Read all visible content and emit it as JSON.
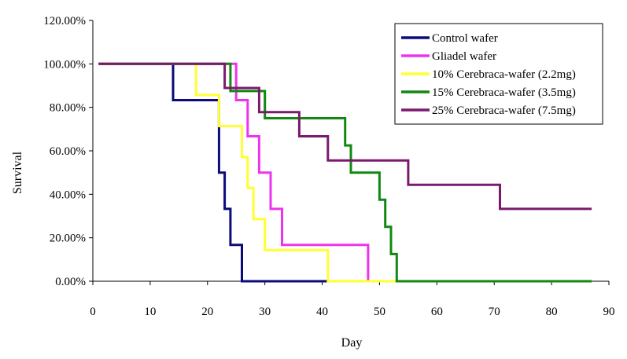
{
  "chart_data": {
    "type": "line",
    "step": true,
    "xlabel": "Day",
    "ylabel": "Survival",
    "xlim": [
      0,
      90
    ],
    "ylim": [
      0,
      1.2
    ],
    "x_ticks": [
      "0",
      "10",
      "20",
      "30",
      "40",
      "50",
      "60",
      "70",
      "80",
      "90"
    ],
    "y_ticks": [
      "0.00%",
      "20.00%",
      "40.00%",
      "60.00%",
      "80.00%",
      "100.00%",
      "120.00%"
    ],
    "grid": false,
    "legend_position": "top-right",
    "series": [
      {
        "name": "Control wafer",
        "color": "#0b0b7a",
        "points": [
          [
            1,
            1.0
          ],
          [
            14,
            1.0
          ],
          [
            14,
            0.833
          ],
          [
            22,
            0.833
          ],
          [
            22,
            0.5
          ],
          [
            23,
            0.5
          ],
          [
            23,
            0.333
          ],
          [
            24,
            0.333
          ],
          [
            24,
            0.167
          ],
          [
            26,
            0.167
          ],
          [
            26,
            0.0
          ],
          [
            41,
            0.0
          ]
        ]
      },
      {
        "name": "Gliadel wafer",
        "color": "#ee33ee",
        "points": [
          [
            1,
            1.0
          ],
          [
            25,
            1.0
          ],
          [
            25,
            0.833
          ],
          [
            27,
            0.833
          ],
          [
            27,
            0.667
          ],
          [
            29,
            0.667
          ],
          [
            29,
            0.5
          ],
          [
            31,
            0.5
          ],
          [
            31,
            0.333
          ],
          [
            33,
            0.333
          ],
          [
            33,
            0.167
          ],
          [
            48,
            0.167
          ],
          [
            48,
            0.0
          ]
        ]
      },
      {
        "name": "10% Cerebraca-wafer (2.2mg)",
        "color": "#ffff33",
        "points": [
          [
            1,
            1.0
          ],
          [
            18,
            1.0
          ],
          [
            18,
            0.857
          ],
          [
            22,
            0.857
          ],
          [
            22,
            0.714
          ],
          [
            26,
            0.714
          ],
          [
            26,
            0.571
          ],
          [
            27,
            0.571
          ],
          [
            27,
            0.429
          ],
          [
            28,
            0.429
          ],
          [
            28,
            0.286
          ],
          [
            30,
            0.286
          ],
          [
            30,
            0.143
          ],
          [
            41,
            0.143
          ],
          [
            41,
            0.0
          ],
          [
            53,
            0.0
          ]
        ]
      },
      {
        "name": "15% Cerebraca-wafer (3.5mg)",
        "color": "#118811",
        "points": [
          [
            1,
            1.0
          ],
          [
            24,
            1.0
          ],
          [
            24,
            0.875
          ],
          [
            30,
            0.875
          ],
          [
            30,
            0.75
          ],
          [
            44,
            0.75
          ],
          [
            44,
            0.625
          ],
          [
            45,
            0.625
          ],
          [
            45,
            0.5
          ],
          [
            50,
            0.5
          ],
          [
            50,
            0.375
          ],
          [
            51,
            0.375
          ],
          [
            51,
            0.25
          ],
          [
            52,
            0.25
          ],
          [
            52,
            0.125
          ],
          [
            53,
            0.125
          ],
          [
            53,
            0.0
          ],
          [
            87,
            0.0
          ]
        ]
      },
      {
        "name": "25% Cerebraca-wafer (7.5mg)",
        "color": "#7a1a6e",
        "points": [
          [
            1,
            1.0
          ],
          [
            23,
            1.0
          ],
          [
            23,
            0.889
          ],
          [
            29,
            0.889
          ],
          [
            29,
            0.778
          ],
          [
            36,
            0.778
          ],
          [
            36,
            0.667
          ],
          [
            41,
            0.667
          ],
          [
            41,
            0.556
          ],
          [
            55,
            0.556
          ],
          [
            55,
            0.444
          ],
          [
            71,
            0.444
          ],
          [
            71,
            0.333
          ],
          [
            87,
            0.333
          ]
        ]
      }
    ]
  }
}
